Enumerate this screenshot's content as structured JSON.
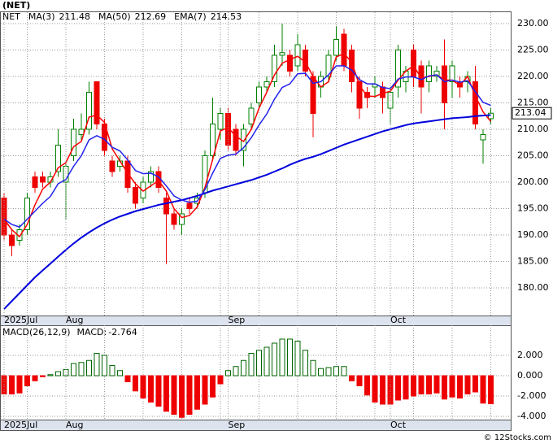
{
  "chart_data": [
    {
      "type": "candlestick",
      "title": "(NET)",
      "ticker": "NET",
      "up_color": "#008000",
      "down_color": "#ee0000",
      "categories": [
        "2025Jul",
        null,
        null,
        null,
        null,
        null,
        null,
        null,
        "Aug",
        null,
        null,
        null,
        null,
        null,
        null,
        null,
        null,
        null,
        null,
        null,
        null,
        null,
        null,
        null,
        null,
        null,
        null,
        null,
        null,
        "Sep",
        null,
        null,
        null,
        null,
        null,
        null,
        null,
        null,
        null,
        null,
        null,
        null,
        null,
        null,
        null,
        null,
        null,
        null,
        null,
        null,
        "Oct",
        null,
        null,
        null,
        null,
        null,
        null,
        null,
        null,
        null,
        null,
        null,
        null,
        null
      ],
      "open": [
        197,
        190,
        189,
        191,
        201,
        201,
        200,
        202,
        200,
        205,
        209,
        210,
        219,
        211,
        204,
        203,
        204,
        199,
        197,
        200,
        202,
        197,
        194,
        192,
        196,
        196,
        198,
        205,
        210,
        213,
        210,
        206,
        211,
        215,
        218,
        219,
        224,
        224,
        222,
        225,
        220,
        218,
        220,
        224,
        228,
        225,
        219,
        217,
        218,
        218,
        214,
        218,
        219,
        225,
        222,
        219,
        220,
        222,
        219,
        219,
        219,
        219,
        208,
        212
      ],
      "high": [
        198,
        191,
        192,
        198,
        202,
        202,
        202,
        210,
        204,
        212,
        213,
        219,
        219,
        212,
        205,
        205,
        205,
        200,
        201,
        203,
        203,
        198,
        195,
        195,
        197,
        198,
        206,
        216,
        214,
        214,
        211,
        211,
        215,
        219,
        220,
        226,
        230,
        225,
        228,
        226,
        221,
        221,
        225,
        229.5,
        229,
        226,
        220,
        218,
        220,
        219,
        218,
        226,
        222,
        226,
        223,
        223,
        222,
        227,
        223,
        220,
        221,
        222,
        210,
        214
      ],
      "low": [
        189,
        186,
        188,
        190,
        198,
        199,
        199,
        201,
        193,
        204,
        208,
        209,
        210,
        205,
        201,
        202,
        198,
        195,
        196,
        199,
        198,
        184.5,
        191,
        190,
        194,
        195,
        197,
        204,
        208,
        206,
        205,
        203,
        210,
        214,
        217,
        218,
        222,
        220,
        221,
        220,
        208.5,
        216,
        219,
        223,
        221,
        217,
        212,
        214,
        216,
        213,
        211,
        216,
        217,
        218,
        213,
        217,
        219,
        210,
        216,
        216,
        217,
        210,
        203.5,
        211
      ],
      "close": [
        190,
        188,
        191,
        197,
        199,
        200,
        201,
        207,
        203,
        210,
        210,
        217,
        211,
        206,
        202,
        204,
        199,
        196,
        200,
        202,
        199,
        194,
        192,
        194,
        195,
        197,
        205,
        211,
        213,
        207,
        206,
        210,
        214,
        218,
        219,
        224,
        224.5,
        221,
        226,
        221,
        213,
        220,
        224,
        227,
        222,
        219,
        214,
        216,
        218.5,
        216,
        217,
        225,
        221,
        220,
        218,
        222,
        221,
        215,
        222,
        218,
        220,
        211,
        209,
        213.04
      ],
      "series": [
        {
          "name": "MA(3)",
          "color": "#ff0000",
          "values": [
            193,
            191,
            189.7,
            192,
            195.7,
            198.7,
            200,
            202.7,
            203.7,
            206.7,
            207.7,
            212.3,
            212.7,
            211.3,
            206.3,
            204,
            201.7,
            199.7,
            198.3,
            199.3,
            200.3,
            198.3,
            195,
            193.3,
            193.7,
            195.3,
            199,
            204.3,
            209.7,
            210.3,
            208.7,
            207.7,
            210,
            214,
            217,
            220.3,
            222.5,
            223.2,
            223.8,
            222.7,
            220,
            218,
            219,
            223.7,
            224.3,
            222.7,
            218.3,
            216.3,
            216.2,
            216.8,
            217.2,
            219.3,
            221,
            222,
            219.7,
            220,
            220.3,
            219.3,
            219.3,
            218.3,
            220,
            216.3,
            213.3,
            211.48
          ]
        },
        {
          "name": "MA(50)",
          "color": "#0000dd",
          "values": [
            176,
            177.5,
            179,
            180.5,
            182,
            183.3,
            184.6,
            185.9,
            187.2,
            188.4,
            189.5,
            190.5,
            191.4,
            192.2,
            192.9,
            193.5,
            194,
            194.5,
            194.9,
            195.3,
            195.7,
            196,
            196.3,
            196.6,
            197,
            197.4,
            197.9,
            198.4,
            198.8,
            199.2,
            199.6,
            200,
            200.4,
            200.9,
            201.4,
            202,
            202.6,
            203.3,
            203.9,
            204.4,
            204.8,
            205.3,
            205.9,
            206.5,
            207.1,
            207.6,
            208.1,
            208.6,
            209.1,
            209.6,
            210,
            210.4,
            210.8,
            211.1,
            211.3,
            211.5,
            211.7,
            211.9,
            212.1,
            212.2,
            212.3,
            212.5,
            212.6,
            212.69
          ]
        },
        {
          "name": "EMA(7)",
          "color": "#2222ee",
          "values": [
            193,
            192,
            191.5,
            193,
            194.5,
            196,
            197.3,
            199.7,
            200.5,
            203,
            205,
            208,
            208.8,
            208.1,
            206.6,
            205.9,
            204.2,
            202.2,
            201.6,
            201.7,
            201,
            199.3,
            197.4,
            196.6,
            196.2,
            196.4,
            198.6,
            201.7,
            204.5,
            205.1,
            205.3,
            206.5,
            208.4,
            210.8,
            212.9,
            215.7,
            217.9,
            218.6,
            220.5,
            220.6,
            218.7,
            219,
            220.3,
            222,
            222,
            221.2,
            219.4,
            218.6,
            218.6,
            217.9,
            217.7,
            219.5,
            219.9,
            219.9,
            219.4,
            220.1,
            220.3,
            219,
            219.3,
            218.9,
            219.2,
            217.1,
            215.1,
            214.53
          ]
        }
      ],
      "ylim": [
        174.77,
        232.15
      ],
      "yticks": [
        {
          "value": 180,
          "label": "180.00"
        },
        {
          "value": 185,
          "label": "185.00"
        },
        {
          "value": 190,
          "label": "190.00"
        },
        {
          "value": 195,
          "label": "195.00"
        },
        {
          "value": 200,
          "label": "200.00"
        },
        {
          "value": 205,
          "label": "205.00"
        },
        {
          "value": 210,
          "label": "210.00"
        },
        {
          "value": 215,
          "label": "215.00"
        },
        {
          "value": 220,
          "label": "220.00"
        },
        {
          "value": 225,
          "label": "225.00"
        },
        {
          "value": 230,
          "label": "230.00"
        }
      ],
      "grid": true
    },
    {
      "type": "macd",
      "title": "MACD(26,12,9)",
      "series_name": "MACD:",
      "up_color": "#006600",
      "down_color": "#ee0000",
      "values": [
        -1.8,
        -1.8,
        -1.7,
        -1.0,
        -0.5,
        -0.1,
        0.1,
        0.4,
        0.6,
        1.2,
        1.3,
        1.5,
        2.2,
        2.0,
        1.0,
        0.5,
        -0.6,
        -1.5,
        -2.2,
        -2.6,
        -3.0,
        -3.5,
        -3.8,
        -4.1,
        -3.8,
        -3.3,
        -2.8,
        -2.1,
        -0.8,
        0.5,
        0.9,
        1.5,
        2.2,
        2.5,
        2.8,
        3.2,
        3.6,
        3.6,
        3.4,
        2.5,
        1.5,
        0.7,
        0.8,
        0.9,
        0.9,
        -0.5,
        -1.0,
        -1.9,
        -2.6,
        -2.8,
        -2.8,
        -2.4,
        -2.3,
        -2.0,
        -1.8,
        -1.8,
        -1.7,
        -2.3,
        -2.1,
        -2.2,
        -1.8,
        -1.6,
        -2.7,
        -2.764
      ],
      "ylim": [
        -4.32,
        4.96
      ],
      "yticks": [
        {
          "value": 2,
          "label": "2.000"
        },
        {
          "value": 0,
          "label": "0.000"
        },
        {
          "value": -2,
          "label": "-2.000"
        },
        {
          "value": -4,
          "label": "-4.000"
        }
      ],
      "grid": true
    }
  ],
  "credit": "© 12Stocks.com"
}
